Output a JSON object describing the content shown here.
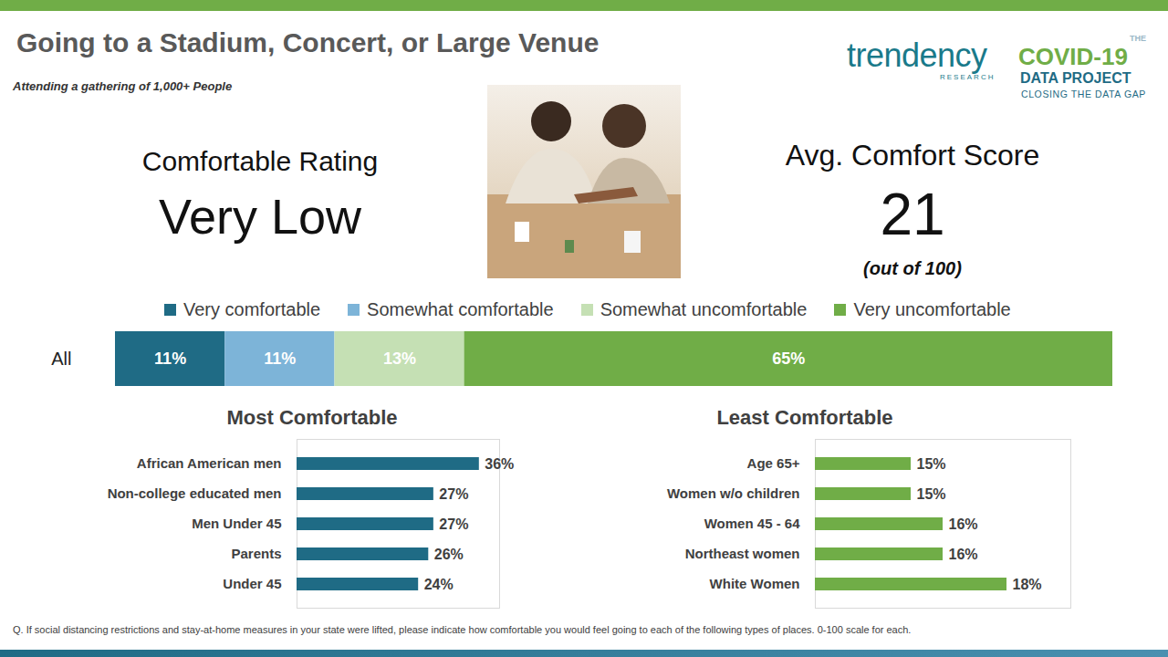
{
  "title": "Going to a Stadium, Concert, or Large Venue",
  "subtitle": "Attending a gathering of 1,000+ People",
  "logos": {
    "trendency": "trendency",
    "trendency_sub": "RESEARCH",
    "project_prefix": "THE",
    "project_name": "COVID-19",
    "project_line2": "DATA PROJECT",
    "project_tagline": "CLOSING THE DATA GAP"
  },
  "rating": {
    "label": "Comfortable Rating",
    "value": "Very Low"
  },
  "score": {
    "label": "Avg. Comfort Score",
    "value": 21,
    "note": "(out of 100)"
  },
  "footnote": "Q. If social distancing restrictions and stay-at-home measures in your state were lifted, please indicate how comfortable you would feel going to each of the following types of places. 0-100 scale for each.",
  "chart_data": [
    {
      "type": "bar",
      "orientation": "horizontal",
      "stacked": true,
      "categories": [
        "All"
      ],
      "series": [
        {
          "name": "Very comfortable",
          "color": "#1f6b85",
          "values": [
            11
          ],
          "value_labels": [
            "11%"
          ]
        },
        {
          "name": "Somewhat comfortable",
          "color": "#7db4d8",
          "values": [
            11
          ],
          "value_labels": [
            "11%"
          ]
        },
        {
          "name": "Somewhat uncomfortable",
          "color": "#c5e0b4",
          "values": [
            13
          ],
          "value_labels": [
            "13%"
          ]
        },
        {
          "name": "Very uncomfortable",
          "color": "#70ad47",
          "values": [
            65
          ],
          "value_labels": [
            "65%"
          ]
        }
      ],
      "xlim": [
        0,
        100
      ],
      "legend": "top",
      "data_labels": true,
      "tick_labels": "y"
    },
    {
      "type": "bar",
      "title": "Most Comfortable",
      "orientation": "horizontal",
      "categories": [
        "African American men",
        "Non-college educated men",
        "Men Under 45",
        "Parents",
        "Under 45"
      ],
      "values": [
        36,
        27,
        27,
        26,
        24
      ],
      "value_labels": [
        "36%",
        "27%",
        "27%",
        "26%",
        "24%"
      ],
      "color": "#1f6b85",
      "xlim": [
        0,
        40
      ],
      "data_labels": true,
      "tick_labels": "y"
    },
    {
      "type": "bar",
      "title": "Least Comfortable",
      "orientation": "horizontal",
      "categories": [
        "Age 65+",
        "Women w/o children",
        "Women 45 - 64",
        "Northeast women",
        "White Women"
      ],
      "values": [
        15,
        15,
        16,
        16,
        18
      ],
      "value_labels": [
        "15%",
        "15%",
        "16%",
        "16%",
        "18%"
      ],
      "color": "#70ad47",
      "xlim": [
        12,
        20
      ],
      "data_labels": true,
      "tick_labels": "y"
    }
  ]
}
